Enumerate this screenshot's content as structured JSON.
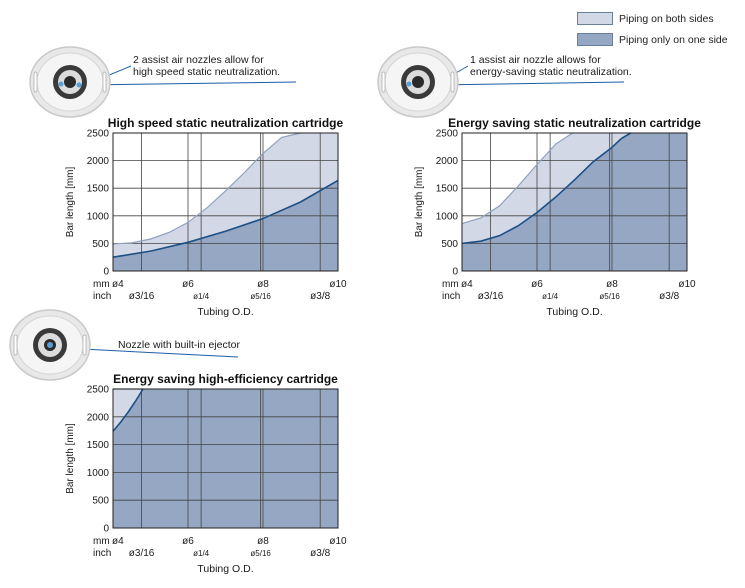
{
  "legend": {
    "both_sides": "Piping on both sides",
    "one_side": "Piping only on one side"
  },
  "colors": {
    "both_sides_fill": "#d3d8e6",
    "one_side_fill": "#96a7c3",
    "curve": "#1c4f84",
    "callout_line": "#1c5ea8",
    "grid": "#444444"
  },
  "chart_data": [
    {
      "type": "area",
      "title": "High speed static neutralization cartridge",
      "annotation": "2 assist air nozzles allow for\nhigh speed static neutralization.",
      "icon": "nozzle-two-assist-icon",
      "xlabel": "Tubing O.D.",
      "ylabel": "Bar length [mm]",
      "ylim": [
        0,
        2500
      ],
      "yticks": [
        0,
        500,
        1000,
        1500,
        2000,
        2500
      ],
      "x_unit_mm": "mm",
      "x_unit_inch": "inch",
      "xticks_mm": [
        {
          "value": 4,
          "label": "ø4"
        },
        {
          "value": 6,
          "label": "ø6"
        },
        {
          "value": 8,
          "label": "ø8"
        },
        {
          "value": 10,
          "label": "ø10"
        }
      ],
      "xticks_inch": [
        {
          "value": 4.7625,
          "label": "ø3/16"
        },
        {
          "value": 6.35,
          "label": "ø1/4"
        },
        {
          "value": 7.9375,
          "label": "ø5/16"
        },
        {
          "value": 9.525,
          "label": "ø3/8"
        }
      ],
      "grid": true,
      "series": [
        {
          "name": "Piping on both sides",
          "x": [
            4,
            4.5,
            5,
            5.5,
            6,
            6.5,
            7,
            7.5,
            8,
            8.5,
            9
          ],
          "y": [
            490,
            510,
            580,
            700,
            880,
            1140,
            1450,
            1780,
            2130,
            2420,
            2500
          ]
        },
        {
          "name": "Piping only on one side",
          "x": [
            4,
            5,
            6,
            7,
            8,
            9,
            10
          ],
          "y": [
            250,
            360,
            520,
            720,
            950,
            1250,
            1640
          ]
        }
      ]
    },
    {
      "type": "area",
      "title": "Energy saving static neutralization cartridge",
      "annotation": "1 assist air nozzle allows for\nenergy-saving static neutralization.",
      "icon": "nozzle-one-assist-icon",
      "xlabel": "Tubing O.D.",
      "ylabel": "Bar length [mm]",
      "ylim": [
        0,
        2500
      ],
      "yticks": [
        0,
        500,
        1000,
        1500,
        2000,
        2500
      ],
      "x_unit_mm": "mm",
      "x_unit_inch": "inch",
      "xticks_mm": [
        {
          "value": 4,
          "label": "ø4"
        },
        {
          "value": 6,
          "label": "ø6"
        },
        {
          "value": 8,
          "label": "ø8"
        },
        {
          "value": 10,
          "label": "ø10"
        }
      ],
      "xticks_inch": [
        {
          "value": 4.7625,
          "label": "ø3/16"
        },
        {
          "value": 6.35,
          "label": "ø1/4"
        },
        {
          "value": 7.9375,
          "label": "ø5/16"
        },
        {
          "value": 9.525,
          "label": "ø3/8"
        }
      ],
      "grid": true,
      "series": [
        {
          "name": "Piping on both sides",
          "x": [
            4,
            4.5,
            5,
            5.5,
            6,
            6.5,
            6.95
          ],
          "y": [
            860,
            960,
            1180,
            1540,
            1930,
            2300,
            2500
          ]
        },
        {
          "name": "Piping only on one side",
          "x": [
            4,
            4.5,
            5,
            5.5,
            6,
            6.5,
            7,
            7.5,
            8,
            8.25,
            8.5
          ],
          "y": [
            500,
            540,
            640,
            820,
            1060,
            1340,
            1650,
            1980,
            2240,
            2400,
            2500
          ]
        }
      ]
    },
    {
      "type": "area",
      "title": "Energy saving high-efficiency cartridge",
      "annotation": "Nozzle with built-in ejector",
      "icon": "nozzle-ejector-icon",
      "xlabel": "Tubing O.D.",
      "ylabel": "Bar length [mm]",
      "ylim": [
        0,
        2500
      ],
      "yticks": [
        0,
        500,
        1000,
        1500,
        2000,
        2500
      ],
      "x_unit_mm": "mm",
      "x_unit_inch": "inch",
      "xticks_mm": [
        {
          "value": 4,
          "label": "ø4"
        },
        {
          "value": 6,
          "label": "ø6"
        },
        {
          "value": 8,
          "label": "ø8"
        },
        {
          "value": 10,
          "label": "ø10"
        }
      ],
      "xticks_inch": [
        {
          "value": 4.7625,
          "label": "ø3/16"
        },
        {
          "value": 6.35,
          "label": "ø1/4"
        },
        {
          "value": 7.9375,
          "label": "ø5/16"
        },
        {
          "value": 9.525,
          "label": "ø3/8"
        }
      ],
      "grid": true,
      "series": [
        {
          "name": "Piping on both sides",
          "x": [
            4,
            4.8
          ],
          "y": [
            2500,
            2500
          ]
        },
        {
          "name": "Piping only on one side",
          "x": [
            4,
            4.2,
            4.4,
            4.6,
            4.8
          ],
          "y": [
            1740,
            1900,
            2080,
            2280,
            2500
          ]
        }
      ]
    }
  ]
}
